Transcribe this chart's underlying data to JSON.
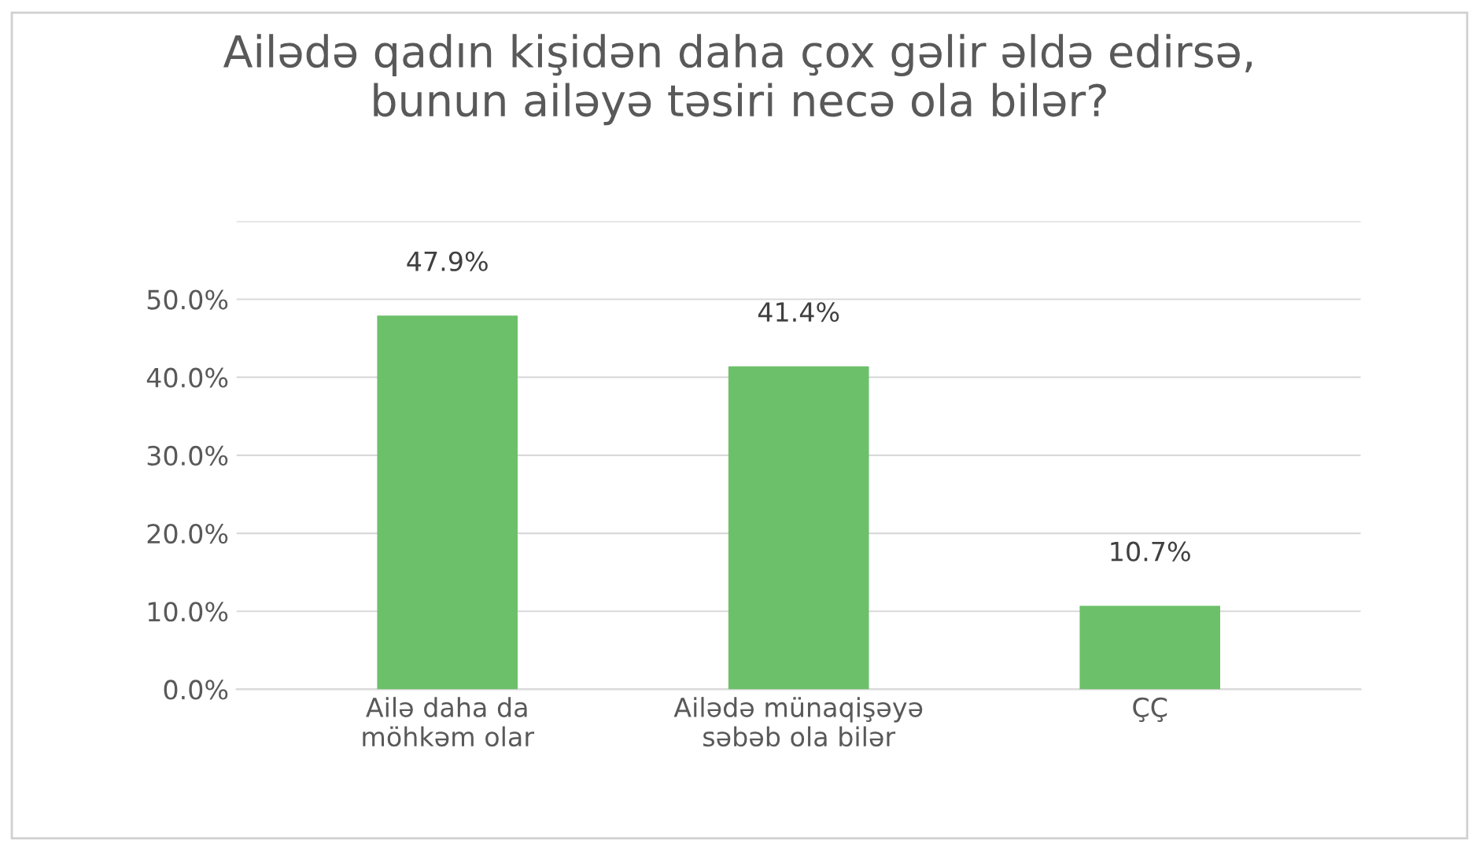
{
  "chart_data": {
    "type": "bar",
    "title": "Ailədə qadın kişidən daha çox gəlir əldə edirsə,\nbunun ailəyə təsiri necə ola bilər?",
    "categories": [
      "Ailə daha da\nmöhkəm olar",
      "Ailədə münaqişəyə\nsəbəb ola bilər",
      "ÇÇ"
    ],
    "values": [
      47.9,
      41.4,
      10.7
    ],
    "value_labels": [
      "47.9%",
      "41.4%",
      "10.7%"
    ],
    "color": "#6cc06a",
    "ylim": [
      0,
      60
    ],
    "yticks": [
      {
        "value": 0,
        "label": "0.0%"
      },
      {
        "value": 10,
        "label": "10.0%"
      },
      {
        "value": 20,
        "label": "20.0%"
      },
      {
        "value": 30,
        "label": "30.0%"
      },
      {
        "value": 40,
        "label": "40.0%"
      },
      {
        "value": 50,
        "label": "50.0%"
      },
      {
        "value": 60,
        "label": null
      }
    ],
    "grid": "y",
    "legend": false
  }
}
